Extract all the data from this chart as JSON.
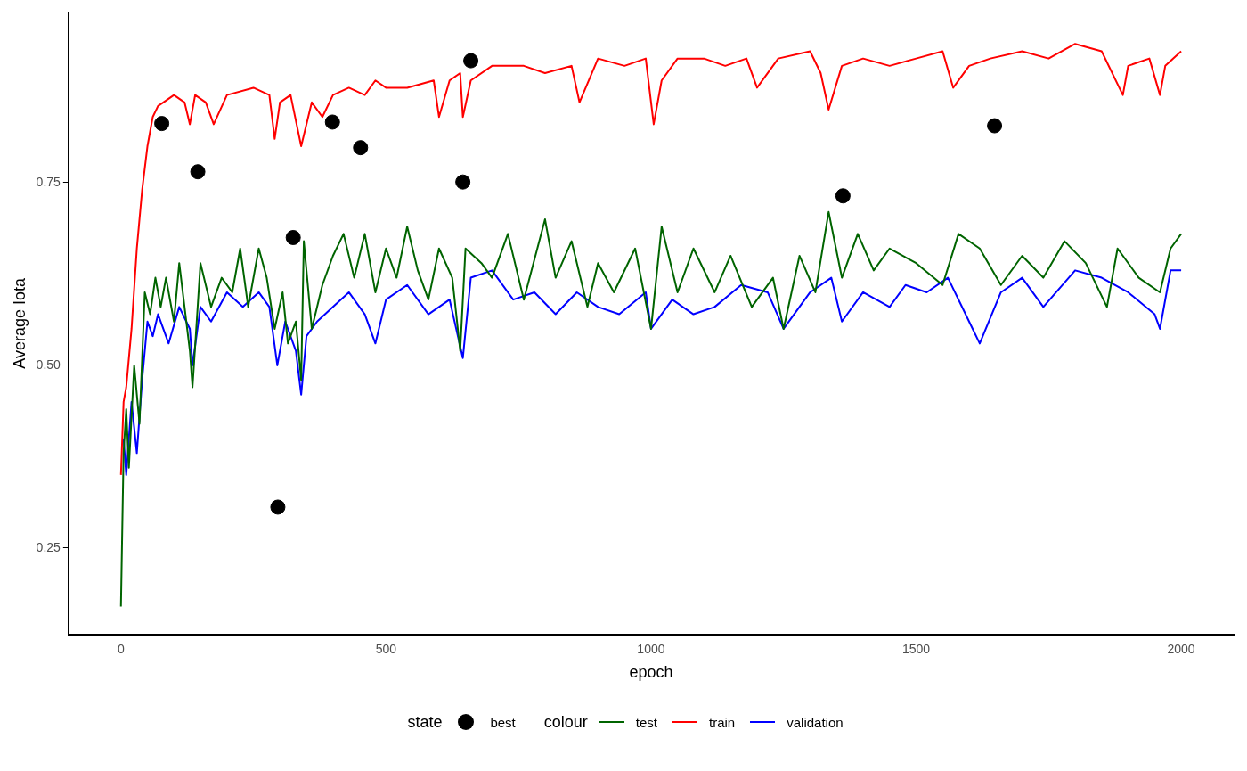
{
  "chart_data": {
    "type": "line",
    "xlabel": "epoch",
    "ylabel": "Average Iota",
    "legend_title": "colour",
    "annotations": [
      "state"
    ],
    "legend": "bottom",
    "grid": false,
    "xlim": [
      -99,
      2099
    ],
    "ylim": [
      0.132,
      0.983
    ],
    "xticks": [
      0,
      500,
      1000,
      1500,
      2000
    ],
    "yticks": [
      0.25,
      {
        "value": 0.5,
        "label": "0.50"
      },
      0.75
    ],
    "series": [
      {
        "type": "scatter",
        "name": "best",
        "color": "#000000",
        "x": [
          77,
          145,
          296,
          325,
          399,
          452,
          645,
          660,
          1362,
          1648
        ],
        "values": [
          0.831,
          0.765,
          0.306,
          0.675,
          0.833,
          0.798,
          0.751,
          0.917,
          0.732,
          0.828
        ]
      },
      {
        "name": "test",
        "color": "#006400",
        "x": [
          0,
          5,
          10,
          15,
          25,
          35,
          45,
          55,
          65,
          75,
          85,
          100,
          110,
          130,
          135,
          150,
          170,
          190,
          210,
          225,
          240,
          260,
          275,
          290,
          305,
          315,
          330,
          340,
          345,
          360,
          380,
          400,
          420,
          440,
          460,
          480,
          500,
          520,
          540,
          560,
          580,
          600,
          625,
          640,
          650,
          680,
          700,
          730,
          760,
          800,
          820,
          850,
          880,
          900,
          930,
          970,
          1000,
          1020,
          1050,
          1080,
          1120,
          1150,
          1190,
          1230,
          1250,
          1280,
          1310,
          1335,
          1360,
          1390,
          1420,
          1450,
          1500,
          1550,
          1580,
          1620,
          1660,
          1700,
          1740,
          1780,
          1820,
          1860,
          1880,
          1920,
          1960,
          1980,
          2000
        ],
        "values": [
          0.17,
          0.38,
          0.44,
          0.36,
          0.5,
          0.42,
          0.6,
          0.57,
          0.62,
          0.58,
          0.62,
          0.56,
          0.64,
          0.52,
          0.47,
          0.64,
          0.58,
          0.62,
          0.6,
          0.66,
          0.58,
          0.66,
          0.62,
          0.55,
          0.6,
          0.53,
          0.56,
          0.48,
          0.67,
          0.55,
          0.61,
          0.65,
          0.68,
          0.62,
          0.68,
          0.6,
          0.66,
          0.62,
          0.69,
          0.63,
          0.59,
          0.66,
          0.62,
          0.52,
          0.66,
          0.64,
          0.62,
          0.68,
          0.59,
          0.7,
          0.62,
          0.67,
          0.58,
          0.64,
          0.6,
          0.66,
          0.55,
          0.69,
          0.6,
          0.66,
          0.6,
          0.65,
          0.58,
          0.62,
          0.55,
          0.65,
          0.6,
          0.71,
          0.62,
          0.68,
          0.63,
          0.66,
          0.64,
          0.61,
          0.68,
          0.66,
          0.61,
          0.65,
          0.62,
          0.67,
          0.64,
          0.58,
          0.66,
          0.62,
          0.6,
          0.66,
          0.68
        ]
      },
      {
        "name": "train",
        "color": "#ff0000",
        "x": [
          0,
          5,
          10,
          20,
          30,
          40,
          50,
          60,
          70,
          80,
          100,
          120,
          130,
          140,
          160,
          175,
          200,
          250,
          280,
          290,
          300,
          320,
          340,
          360,
          380,
          400,
          430,
          460,
          480,
          500,
          540,
          590,
          600,
          620,
          640,
          645,
          660,
          700,
          760,
          800,
          850,
          865,
          900,
          950,
          990,
          1005,
          1020,
          1050,
          1100,
          1140,
          1180,
          1200,
          1240,
          1300,
          1320,
          1335,
          1360,
          1400,
          1450,
          1500,
          1550,
          1570,
          1600,
          1640,
          1700,
          1750,
          1800,
          1850,
          1890,
          1900,
          1940,
          1960,
          1970,
          2000
        ],
        "values": [
          0.35,
          0.45,
          0.47,
          0.55,
          0.66,
          0.74,
          0.8,
          0.84,
          0.855,
          0.86,
          0.87,
          0.86,
          0.83,
          0.87,
          0.86,
          0.83,
          0.87,
          0.88,
          0.87,
          0.81,
          0.86,
          0.87,
          0.8,
          0.86,
          0.84,
          0.87,
          0.88,
          0.87,
          0.89,
          0.88,
          0.88,
          0.89,
          0.84,
          0.89,
          0.9,
          0.84,
          0.89,
          0.91,
          0.91,
          0.9,
          0.91,
          0.86,
          0.92,
          0.91,
          0.92,
          0.83,
          0.89,
          0.92,
          0.92,
          0.91,
          0.92,
          0.88,
          0.92,
          0.93,
          0.9,
          0.85,
          0.91,
          0.92,
          0.91,
          0.92,
          0.93,
          0.88,
          0.91,
          0.92,
          0.93,
          0.92,
          0.94,
          0.93,
          0.87,
          0.91,
          0.92,
          0.87,
          0.91,
          0.93
        ]
      },
      {
        "name": "validation",
        "color": "#0000ff",
        "x": [
          5,
          10,
          20,
          30,
          40,
          50,
          60,
          70,
          90,
          110,
          130,
          135,
          150,
          170,
          200,
          230,
          260,
          280,
          295,
          310,
          330,
          340,
          350,
          370,
          400,
          430,
          460,
          480,
          500,
          540,
          580,
          620,
          645,
          660,
          700,
          740,
          780,
          820,
          860,
          900,
          940,
          990,
          1000,
          1040,
          1080,
          1120,
          1170,
          1220,
          1250,
          1300,
          1340,
          1360,
          1400,
          1450,
          1480,
          1520,
          1560,
          1600,
          1620,
          1660,
          1700,
          1740,
          1800,
          1850,
          1900,
          1950,
          1960,
          1980,
          2000
        ],
        "values": [
          0.4,
          0.35,
          0.45,
          0.38,
          0.48,
          0.56,
          0.54,
          0.57,
          0.53,
          0.58,
          0.55,
          0.5,
          0.58,
          0.56,
          0.6,
          0.58,
          0.6,
          0.58,
          0.5,
          0.56,
          0.52,
          0.46,
          0.54,
          0.56,
          0.58,
          0.6,
          0.57,
          0.53,
          0.59,
          0.61,
          0.57,
          0.59,
          0.51,
          0.62,
          0.63,
          0.59,
          0.6,
          0.57,
          0.6,
          0.58,
          0.57,
          0.6,
          0.55,
          0.59,
          0.57,
          0.58,
          0.61,
          0.6,
          0.55,
          0.6,
          0.62,
          0.56,
          0.6,
          0.58,
          0.61,
          0.6,
          0.62,
          0.56,
          0.53,
          0.6,
          0.62,
          0.58,
          0.63,
          0.62,
          0.6,
          0.57,
          0.55,
          0.63,
          0.63
        ]
      }
    ]
  }
}
